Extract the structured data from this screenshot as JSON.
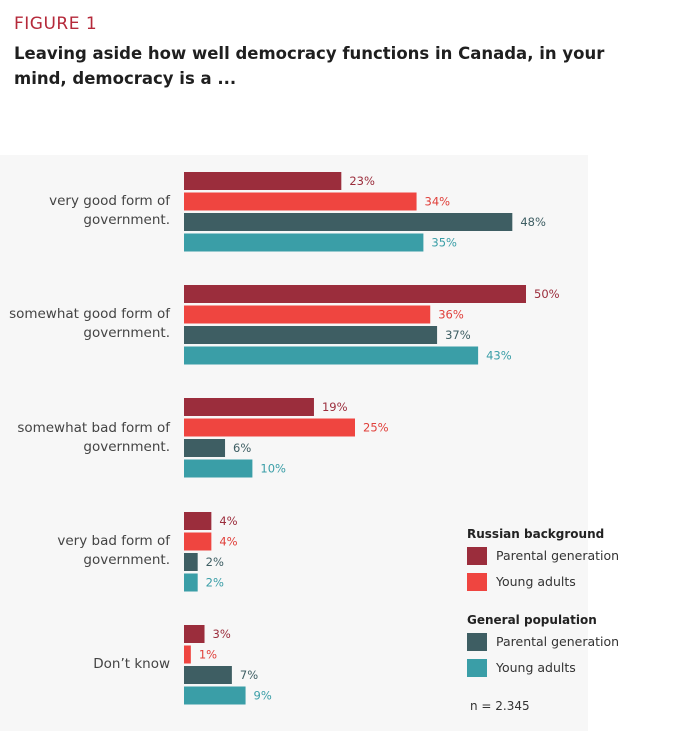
{
  "figure_label": "FIGURE 1",
  "chart_data": {
    "type": "bar",
    "orientation": "horizontal",
    "title": "Leaving aside how well democracy functions in Canada, in your mind, democracy is a ...",
    "categories": [
      [
        "very good form of",
        "government."
      ],
      [
        "somewhat good form of",
        "government."
      ],
      [
        "somewhat bad form of",
        "government."
      ],
      [
        "very bad form of",
        "government."
      ],
      [
        "Don’t know"
      ]
    ],
    "series": [
      {
        "name": "Russian background – Parental generation",
        "color": "#9b2d3c",
        "label_color": "#9b2d3c",
        "values": [
          23,
          50,
          19,
          4,
          3
        ]
      },
      {
        "name": "Russian background – Young adults",
        "color": "#ef4540",
        "label_color": "#e0403b",
        "values": [
          34,
          36,
          25,
          4,
          1
        ]
      },
      {
        "name": "General population – Parental generation",
        "color": "#3e5e63",
        "label_color": "#3e5e63",
        "values": [
          48,
          37,
          6,
          2,
          7
        ]
      },
      {
        "name": "General population – Young adults",
        "color": "#3a9ea7",
        "label_color": "#3a9ea7",
        "values": [
          35,
          43,
          10,
          2,
          9
        ]
      }
    ],
    "value_labels": [
      [
        "23%",
        "34%",
        "48%",
        "35%"
      ],
      [
        "50%",
        "36%",
        "37%",
        "43%"
      ],
      [
        "19%",
        "25%",
        "6%",
        "10%"
      ],
      [
        "4%",
        "4%",
        "2%",
        "2%"
      ],
      [
        "3%",
        "1%",
        "7%",
        "9%"
      ]
    ],
    "value_unit": "%",
    "xlim": [
      0,
      50
    ],
    "grid": false,
    "legend_position": "bottom-right"
  },
  "legend": {
    "groups": [
      {
        "title": "Russian background",
        "items": [
          {
            "label": "Parental generation",
            "color": "#9b2d3c"
          },
          {
            "label": "Young adults",
            "color": "#ef4540"
          }
        ]
      },
      {
        "title": "General population",
        "items": [
          {
            "label": "Parental generation",
            "color": "#3e5e63"
          },
          {
            "label": "Young adults",
            "color": "#3a9ea7"
          }
        ]
      }
    ]
  },
  "sample_note": "n = 2.345"
}
